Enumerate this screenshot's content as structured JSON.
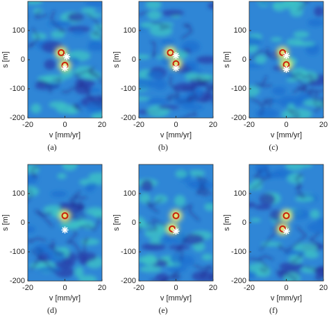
{
  "chart_data": [
    {
      "type": "scatter",
      "xlabel": "v [mm/yr]",
      "ylabel": "s [m]",
      "caption": "(a)",
      "xlim": [
        -20,
        20
      ],
      "ylim": [
        -200,
        200
      ],
      "xticks": [
        -20,
        0,
        20
      ],
      "yticks": [
        -200,
        -100,
        0,
        100
      ],
      "series": [
        {
          "marker": "o",
          "color": "#c8200a",
          "x": [
            -2,
            0
          ],
          "values": [
            24,
            -19
          ]
        },
        {
          "marker": "*",
          "color": "#ffffff",
          "x": [
            1,
            0
          ],
          "values": [
            10,
            -29
          ]
        }
      ]
    },
    {
      "type": "scatter",
      "xlabel": "v [mm/yr]",
      "ylabel": "s [m]",
      "caption": "(b)",
      "xlim": [
        -20,
        20
      ],
      "ylim": [
        -200,
        200
      ],
      "xticks": [
        -20,
        0,
        20
      ],
      "yticks": [
        -200,
        -100,
        0,
        100
      ],
      "series": [
        {
          "marker": "o",
          "color": "#c8200a",
          "x": [
            -3,
            0
          ],
          "values": [
            24,
            -14
          ]
        },
        {
          "marker": "*",
          "color": "#ffffff",
          "x": [
            0,
            0
          ],
          "values": [
            14,
            -29
          ]
        }
      ]
    },
    {
      "type": "scatter",
      "xlabel": "v [mm/yr]",
      "ylabel": "s [m]",
      "caption": "(c)",
      "xlim": [
        -20,
        20
      ],
      "ylim": [
        -200,
        200
      ],
      "xticks": [
        -20,
        0,
        20
      ],
      "yticks": [
        -200,
        -100,
        0,
        100
      ],
      "series": [
        {
          "marker": "o",
          "color": "#c8200a",
          "x": [
            -2,
            0
          ],
          "values": [
            24,
            -17
          ]
        },
        {
          "marker": "*",
          "color": "#ffffff",
          "x": [
            0,
            0
          ],
          "values": [
            14,
            -33
          ]
        }
      ]
    },
    {
      "type": "scatter",
      "xlabel": "v [mm/yr]",
      "ylabel": "s [m]",
      "caption": "(d)",
      "xlim": [
        -20,
        20
      ],
      "ylim": [
        -200,
        200
      ],
      "xticks": [
        -20,
        0,
        20
      ],
      "yticks": [
        -200,
        -100,
        0,
        100
      ],
      "series": [
        {
          "marker": "o",
          "color": "#c8200a",
          "x": [
            0
          ],
          "values": [
            24
          ]
        },
        {
          "marker": "*",
          "color": "#ffffff",
          "x": [
            0
          ],
          "values": [
            -25
          ]
        }
      ]
    },
    {
      "type": "scatter",
      "xlabel": "v [mm/yr]",
      "ylabel": "s [m]",
      "caption": "(e)",
      "xlim": [
        -20,
        20
      ],
      "ylim": [
        -200,
        200
      ],
      "xticks": [
        -20,
        0,
        20
      ],
      "yticks": [
        -200,
        -100,
        0,
        100
      ],
      "series": [
        {
          "marker": "o",
          "color": "#c8200a",
          "x": [
            0,
            -2
          ],
          "values": [
            24,
            -21
          ]
        },
        {
          "marker": "*",
          "color": "#ffffff",
          "x": [
            0
          ],
          "values": [
            -29
          ]
        }
      ]
    },
    {
      "type": "scatter",
      "xlabel": "v [mm/yr]",
      "ylabel": "s [m]",
      "caption": "(f)",
      "xlim": [
        -20,
        20
      ],
      "ylim": [
        -200,
        200
      ],
      "xticks": [
        -20,
        0,
        20
      ],
      "yticks": [
        -200,
        -100,
        0,
        100
      ],
      "series": [
        {
          "marker": "o",
          "color": "#c8200a",
          "x": [
            0,
            -2
          ],
          "values": [
            24,
            -21
          ]
        },
        {
          "marker": "*",
          "color": "#ffffff",
          "x": [
            0
          ],
          "values": [
            -29
          ]
        }
      ]
    }
  ]
}
